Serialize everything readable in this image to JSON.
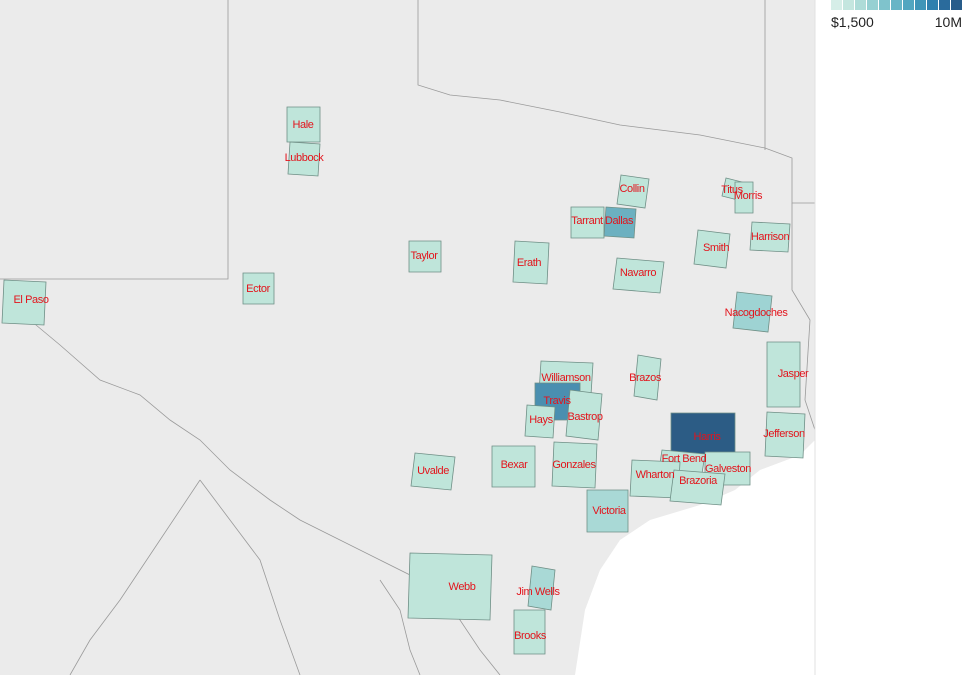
{
  "legend": {
    "min_label": "$1,500",
    "max_label": "10M",
    "colors": [
      "#d6eee8",
      "#c4e6df",
      "#aedcd8",
      "#96d0d2",
      "#7fc3cc",
      "#68b5c6",
      "#52a6c0",
      "#3f95b8",
      "#2f80ae",
      "#2a6b9c",
      "#285c8a"
    ]
  },
  "counties": [
    {
      "name": "Hale",
      "color": "#bfe5da"
    },
    {
      "name": "Lubbock",
      "color": "#bfe5da"
    },
    {
      "name": "Collin",
      "color": "#bfe5da"
    },
    {
      "name": "Tarrant",
      "color": "#bfe5da"
    },
    {
      "name": "Dallas",
      "color": "#6cb0c0"
    },
    {
      "name": "Titus",
      "color": "#bfe5da"
    },
    {
      "name": "Morris",
      "color": "#bfe5da"
    },
    {
      "name": "Harrison",
      "color": "#bfe5da"
    },
    {
      "name": "Smith",
      "color": "#bfe5da"
    },
    {
      "name": "Taylor",
      "color": "#bfe5da"
    },
    {
      "name": "Erath",
      "color": "#bfe5da"
    },
    {
      "name": "Navarro",
      "color": "#bfe5da"
    },
    {
      "name": "Ector",
      "color": "#bfe5da"
    },
    {
      "name": "El Paso",
      "color": "#bfe5da"
    },
    {
      "name": "Nacogdoches",
      "color": "#9ed3d3"
    },
    {
      "name": "Jasper",
      "color": "#bfe5da"
    },
    {
      "name": "Williamson",
      "color": "#bfe5da"
    },
    {
      "name": "Brazos",
      "color": "#bfe5da"
    },
    {
      "name": "Travis",
      "color": "#4a8fb0"
    },
    {
      "name": "Hays",
      "color": "#bfe5da"
    },
    {
      "name": "Bastrop",
      "color": "#bfe5da"
    },
    {
      "name": "Harris",
      "color": "#2c5c85"
    },
    {
      "name": "Jefferson",
      "color": "#bfe5da"
    },
    {
      "name": "Uvalde",
      "color": "#bfe5da"
    },
    {
      "name": "Bexar",
      "color": "#bfe5da"
    },
    {
      "name": "Gonzales",
      "color": "#bfe5da"
    },
    {
      "name": "Fort Bend",
      "color": "#bfe5da"
    },
    {
      "name": "Galveston",
      "color": "#bfe5da"
    },
    {
      "name": "Wharton",
      "color": "#bfe5da"
    },
    {
      "name": "Brazoria",
      "color": "#bfe5da"
    },
    {
      "name": "Victoria",
      "color": "#a9d9d6"
    },
    {
      "name": "Webb",
      "color": "#bfe5da"
    },
    {
      "name": "Jim Wells",
      "color": "#a9d9d6"
    },
    {
      "name": "Brooks",
      "color": "#bfe5da"
    }
  ]
}
